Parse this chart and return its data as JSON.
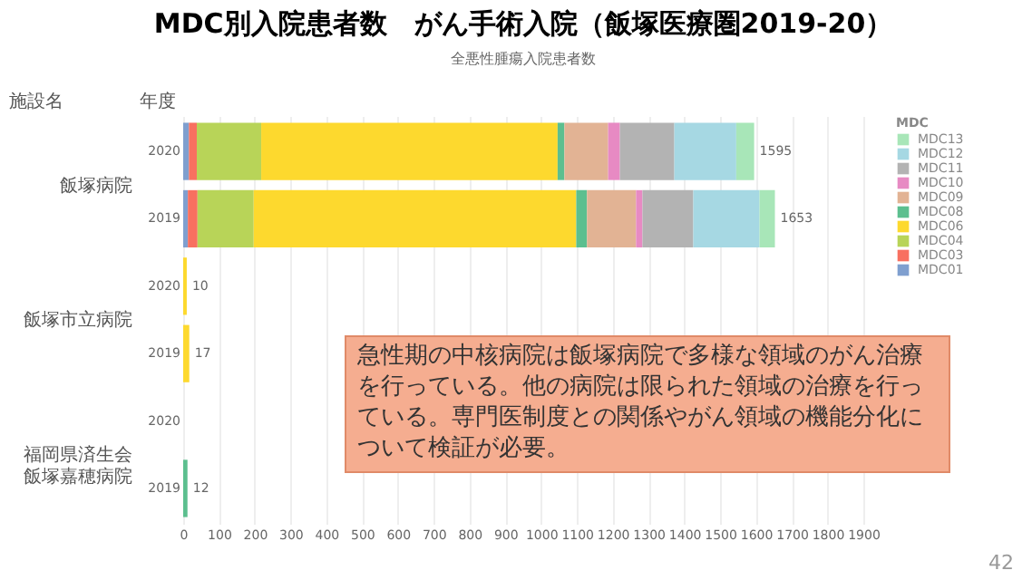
{
  "chart_data": {
    "type": "bar",
    "orientation": "horizontal",
    "stacked": true,
    "title": "MDC別入院患者数　がん手術入院（飯塚医療圏2019-20）",
    "subtitle": "全悪性腫瘍入院患者数",
    "legend_title": "MDC",
    "categories": [
      "2020",
      "2019",
      "2020",
      "2019",
      "2020",
      "2019"
    ],
    "series": [
      {
        "name": "MDC01",
        "color": "#7f9fcf",
        "values": [
          16,
          13,
          null,
          null,
          null,
          null
        ]
      },
      {
        "name": "MDC03",
        "color": "#f87060",
        "values": [
          22,
          27,
          null,
          null,
          null,
          null
        ]
      },
      {
        "name": "MDC04",
        "color": "#b8d458",
        "values": [
          180,
          157,
          null,
          null,
          null,
          null
        ]
      },
      {
        "name": "MDC06",
        "color": "#fdd92e",
        "values": [
          828,
          901,
          10,
          17,
          null,
          null
        ]
      },
      {
        "name": "MDC08",
        "color": "#5cbf8f",
        "values": [
          19,
          30,
          null,
          null,
          null,
          12
        ]
      },
      {
        "name": "MDC09",
        "color": "#e2b394",
        "values": [
          122,
          137,
          null,
          null,
          null,
          null
        ]
      },
      {
        "name": "MDC10",
        "color": "#e78ac3",
        "values": [
          33,
          18,
          null,
          null,
          null,
          null
        ]
      },
      {
        "name": "MDC11",
        "color": "#b3b3b3",
        "values": [
          152,
          142,
          null,
          null,
          null,
          null
        ]
      },
      {
        "name": "MDC12",
        "color": "#a6d8e3",
        "values": [
          173,
          185,
          null,
          null,
          null,
          null
        ]
      },
      {
        "name": "MDC13",
        "color": "#a8e6b8",
        "values": [
          50,
          43,
          null,
          null,
          null,
          null
        ]
      }
    ],
    "totals": [
      "1595",
      "1653",
      "10",
      "17",
      null,
      "12"
    ],
    "xlim": [
      0,
      1900
    ],
    "xticks": [
      0,
      100,
      200,
      300,
      400,
      500,
      600,
      700,
      800,
      900,
      1000,
      1100,
      1200,
      1300,
      1400,
      1500,
      1600,
      1700,
      1800,
      1900
    ],
    "grid": "x",
    "legend": "right",
    "annotations": [
      "施設名",
      "年度",
      "飯塚病院",
      "飯塚市立病院",
      "福岡県済生会飯塚嘉穂病院",
      "急性期の中核病院は飯塚病院で多様な領域のがん治療を行っている。他の病院は限られた領域の治療を行っている。専門医制度との関係やがん領域の機能分化について検証が必要。",
      "42"
    ]
  }
}
